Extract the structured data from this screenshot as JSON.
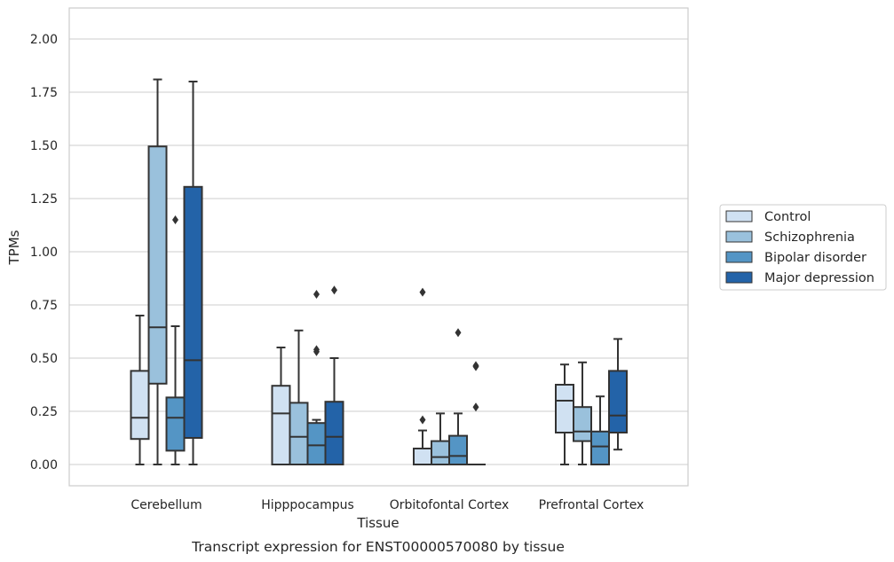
{
  "chart_data": {
    "type": "box",
    "caption": "Transcript expression for ENST00000570080 by tissue",
    "xlabel": "Tissue",
    "ylabel": "TPMs",
    "ylim": [
      -0.1,
      2.15
    ],
    "yticks": [
      "0.00",
      "0.25",
      "0.50",
      "0.75",
      "1.00",
      "1.25",
      "1.50",
      "1.75",
      "2.00"
    ],
    "grid": true,
    "legend_position": "right",
    "categories": [
      "Cerebellum",
      "Hipppocampus",
      "Orbitofontal Cortex",
      "Prefrontal Cortex"
    ],
    "series": [
      {
        "name": "Control",
        "color": "#d0e1f2",
        "boxes": [
          {
            "whisker_low": 0.0,
            "q1": 0.12,
            "median": 0.22,
            "q3": 0.44,
            "whisker_high": 0.7,
            "outliers": []
          },
          {
            "whisker_low": 0.0,
            "q1": 0.0,
            "median": 0.24,
            "q3": 0.37,
            "whisker_high": 0.55,
            "outliers": []
          },
          {
            "whisker_low": 0.0,
            "q1": 0.0,
            "median": 0.0,
            "q3": 0.075,
            "whisker_high": 0.16,
            "outliers": [
              0.21,
              0.81
            ]
          },
          {
            "whisker_low": 0.0,
            "q1": 0.15,
            "median": 0.3,
            "q3": 0.375,
            "whisker_high": 0.47,
            "outliers": []
          }
        ]
      },
      {
        "name": "Schizophrenia",
        "color": "#9ac1dc",
        "boxes": [
          {
            "whisker_low": 0.0,
            "q1": 0.38,
            "median": 0.645,
            "q3": 1.495,
            "whisker_high": 1.81,
            "outliers": []
          },
          {
            "whisker_low": 0.0,
            "q1": 0.0,
            "median": 0.13,
            "q3": 0.29,
            "whisker_high": 0.63,
            "outliers": []
          },
          {
            "whisker_low": 0.0,
            "q1": 0.0,
            "median": 0.035,
            "q3": 0.11,
            "whisker_high": 0.24,
            "outliers": []
          },
          {
            "whisker_low": 0.0,
            "q1": 0.11,
            "median": 0.155,
            "q3": 0.27,
            "whisker_high": 0.48,
            "outliers": []
          }
        ]
      },
      {
        "name": "Bipolar disorder",
        "color": "#5495c5",
        "boxes": [
          {
            "whisker_low": 0.0,
            "q1": 0.065,
            "median": 0.22,
            "q3": 0.315,
            "whisker_high": 0.65,
            "outliers": [
              1.15
            ]
          },
          {
            "whisker_low": 0.0,
            "q1": 0.0,
            "median": 0.09,
            "q3": 0.195,
            "whisker_high": 0.21,
            "outliers": [
              0.53,
              0.54,
              0.8
            ]
          },
          {
            "whisker_low": 0.0,
            "q1": 0.0,
            "median": 0.04,
            "q3": 0.135,
            "whisker_high": 0.24,
            "outliers": [
              0.62
            ]
          },
          {
            "whisker_low": 0.0,
            "q1": 0.0,
            "median": 0.085,
            "q3": 0.155,
            "whisker_high": 0.32,
            "outliers": []
          }
        ]
      },
      {
        "name": "Major depression",
        "color": "#2363a8",
        "boxes": [
          {
            "whisker_low": 0.0,
            "q1": 0.125,
            "median": 0.49,
            "q3": 1.305,
            "whisker_high": 1.8,
            "outliers": []
          },
          {
            "whisker_low": 0.0,
            "q1": 0.0,
            "median": 0.13,
            "q3": 0.295,
            "whisker_high": 0.5,
            "outliers": [
              0.82
            ]
          },
          {
            "whisker_low": 0.0,
            "q1": 0.0,
            "median": 0.0,
            "q3": 0.0,
            "whisker_high": 0.0,
            "outliers": [
              0.27,
              0.46,
              0.465
            ]
          },
          {
            "whisker_low": 0.07,
            "q1": 0.15,
            "median": 0.23,
            "q3": 0.44,
            "whisker_high": 0.59,
            "outliers": []
          }
        ]
      }
    ],
    "colors": {
      "grid": "#cccccc",
      "frame": "#cccccc",
      "box_edge": "#333333",
      "legend_border": "#cccccc"
    }
  }
}
